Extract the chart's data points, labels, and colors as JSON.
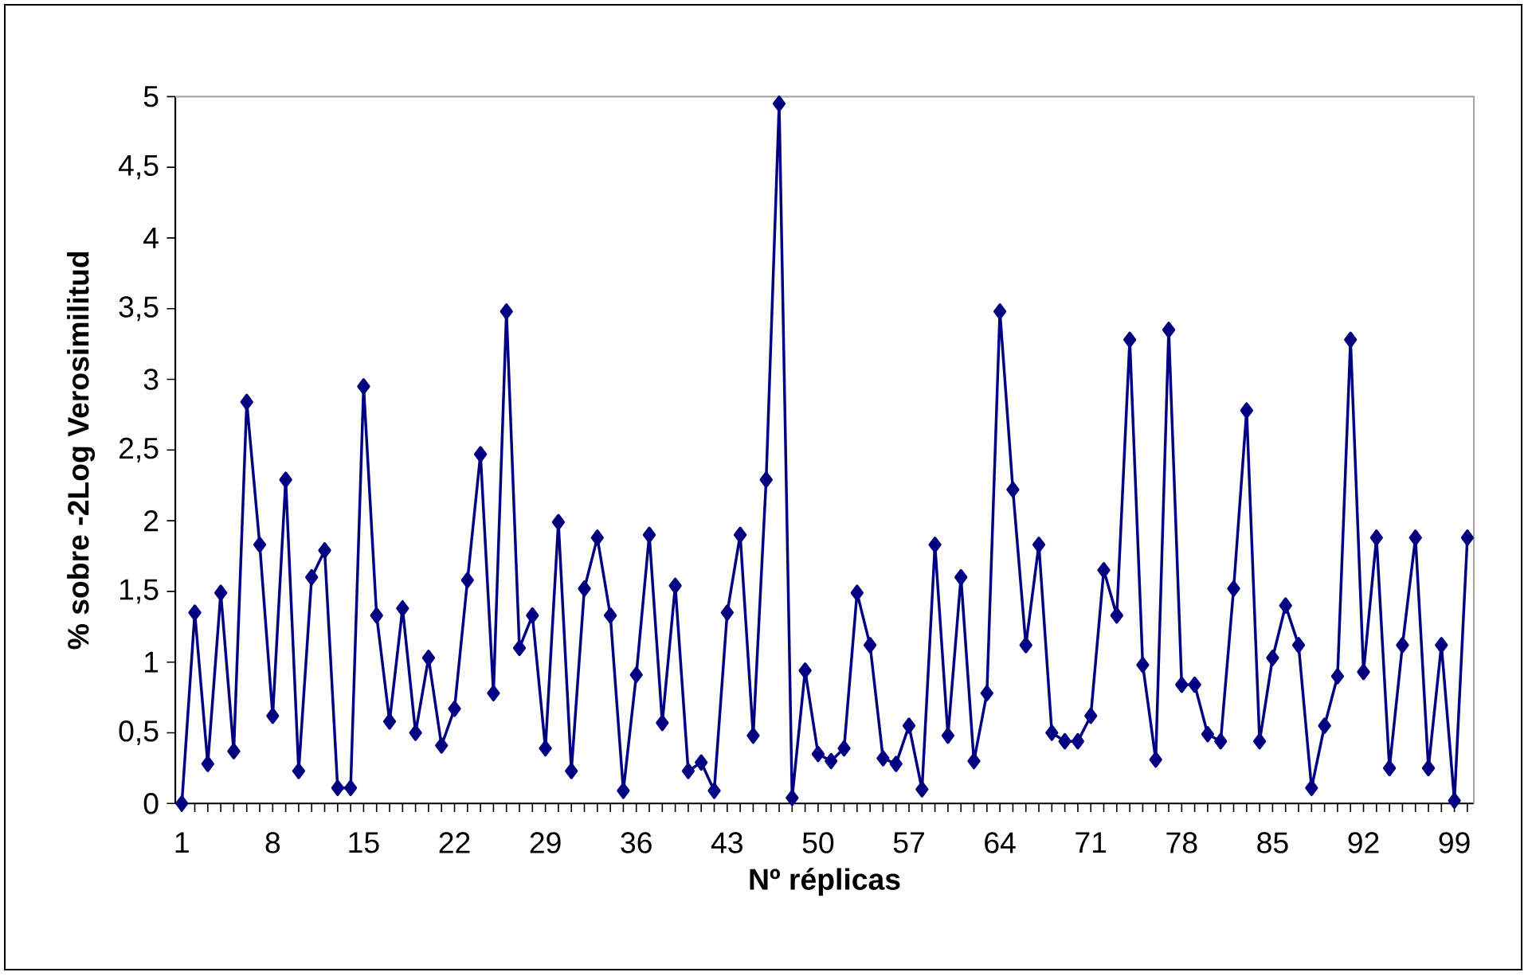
{
  "chart_data": {
    "type": "line",
    "xlabel": "Nº réplicas",
    "ylabel": "% sobre -2Log Verosimilitud",
    "categories": [
      "1",
      null,
      null,
      null,
      null,
      null,
      null,
      "8",
      null,
      null,
      null,
      null,
      null,
      null,
      "15",
      null,
      null,
      null,
      null,
      null,
      null,
      "22",
      null,
      null,
      null,
      null,
      null,
      null,
      "29",
      null,
      null,
      null,
      null,
      null,
      null,
      "36",
      null,
      null,
      null,
      null,
      null,
      null,
      "43",
      null,
      null,
      null,
      null,
      null,
      null,
      "50",
      null,
      null,
      null,
      null,
      null,
      null,
      "57",
      null,
      null,
      null,
      null,
      null,
      null,
      "64",
      null,
      null,
      null,
      null,
      null,
      null,
      "71",
      null,
      null,
      null,
      null,
      null,
      null,
      "78",
      null,
      null,
      null,
      null,
      null,
      null,
      "85",
      null,
      null,
      null,
      null,
      null,
      null,
      "92",
      null,
      null,
      null,
      null,
      null,
      null,
      "99",
      null
    ],
    "series": [
      {
        "color": "#000080",
        "values": [
          0,
          1.35,
          0.28,
          1.49,
          0.37,
          2.84,
          1.83,
          0.62,
          2.29,
          0.23,
          1.6,
          1.79,
          0.11,
          0.11,
          2.95,
          1.33,
          0.58,
          1.38,
          0.5,
          1.03,
          0.41,
          0.67,
          1.58,
          2.47,
          0.78,
          3.48,
          1.1,
          1.33,
          0.39,
          1.99,
          0.23,
          1.52,
          1.88,
          1.33,
          0.09,
          0.91,
          1.9,
          0.57,
          1.54,
          0.23,
          0.29,
          0.09,
          1.35,
          1.9,
          0.48,
          2.29,
          4.95,
          0.04,
          0.94,
          0.35,
          0.3,
          0.39,
          1.49,
          1.12,
          0.32,
          0.28,
          0.55,
          0.1,
          1.83,
          0.48,
          1.6,
          0.3,
          0.78,
          3.48,
          2.22,
          1.12,
          1.83,
          0.5,
          0.44,
          0.44,
          0.62,
          1.65,
          1.33,
          3.28,
          0.98,
          0.31,
          3.35,
          0.84,
          0.84,
          0.49,
          0.44,
          1.52,
          2.78,
          0.44,
          1.03,
          1.4,
          1.12,
          0.11,
          0.55,
          0.9,
          3.28,
          0.93,
          1.88,
          0.25,
          1.12,
          1.88,
          0.25,
          1.12,
          0.02,
          1.88
        ]
      }
    ],
    "ylim": [
      0,
      5
    ],
    "yticks": [
      0,
      {
        "value": 0.5,
        "label": "0,5"
      },
      1,
      {
        "value": 1.5,
        "label": "1,5"
      },
      2,
      {
        "value": 2.5,
        "label": "2,5"
      },
      3,
      {
        "value": 3.5,
        "label": "3,5"
      },
      4,
      {
        "value": 4.5,
        "label": "4,5"
      },
      5
    ],
    "marker": "diamond",
    "line_style": "solid",
    "grid": false,
    "legend": false
  }
}
